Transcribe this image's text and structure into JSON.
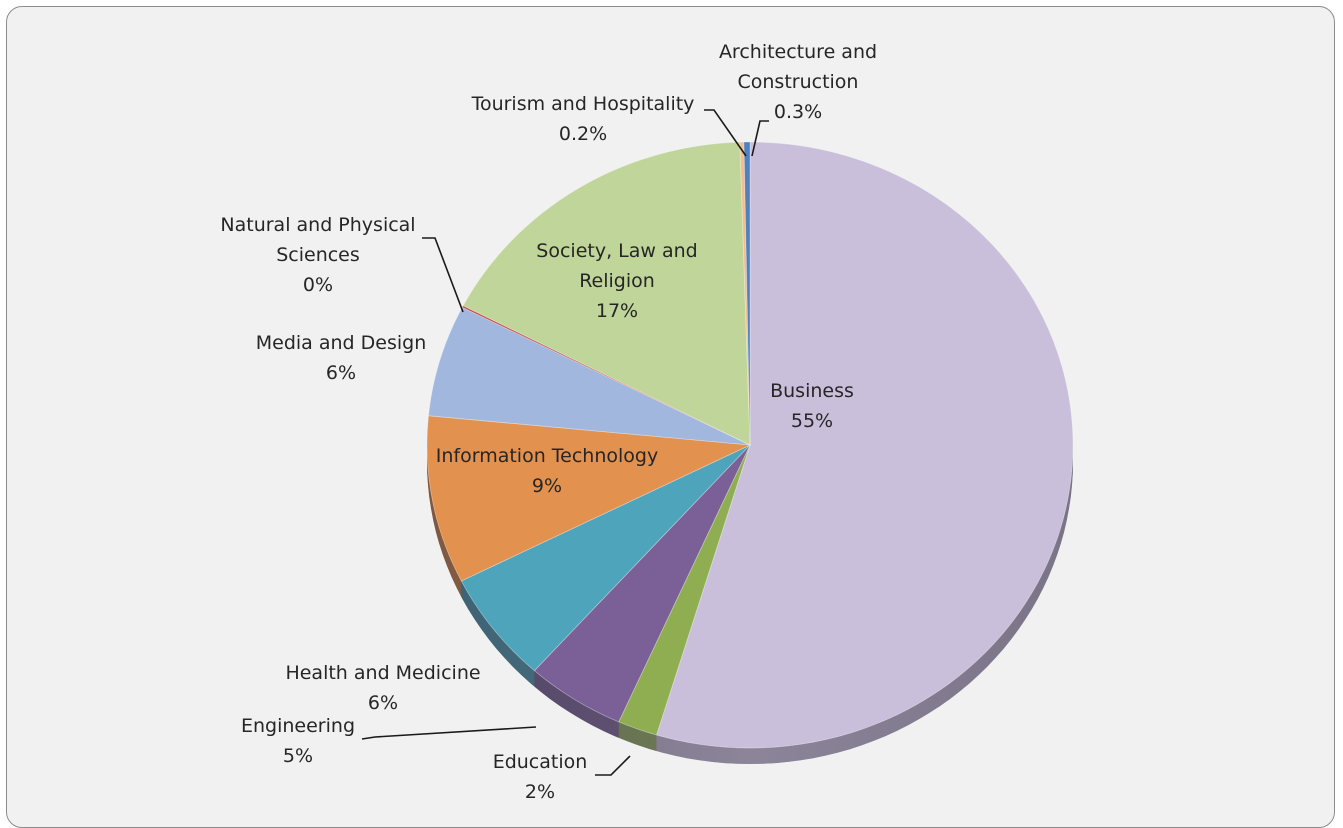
{
  "chart_data": {
    "type": "pie",
    "title": "",
    "slices": [
      {
        "key": "business",
        "label_lines": [
          "Business",
          "55%"
        ],
        "value": 55,
        "color": "#c9bfdb"
      },
      {
        "key": "education",
        "label_lines": [
          "Education",
          "2%"
        ],
        "value": 2,
        "color": "#8fae52"
      },
      {
        "key": "engineering",
        "label_lines": [
          "Engineering",
          "5%"
        ],
        "value": 5,
        "color": "#7b5f97"
      },
      {
        "key": "health-and-medicine",
        "label_lines": [
          "Health and Medicine",
          "6%"
        ],
        "value": 6,
        "color": "#4ea4bb"
      },
      {
        "key": "information-technology",
        "label_lines": [
          "Information Technology",
          "9%"
        ],
        "value": 9,
        "color": "#e3914e"
      },
      {
        "key": "media-and-design",
        "label_lines": [
          "Media and Design",
          "6%"
        ],
        "value": 6,
        "color": "#a2b7dd"
      },
      {
        "key": "natural-and-physical-sciences",
        "label_lines": [
          "Natural and Physical",
          "Sciences",
          "0%"
        ],
        "value": 0.1,
        "color": "#c0504d"
      },
      {
        "key": "society-law-and-religion",
        "label_lines": [
          "Society, Law and",
          "Religion",
          "17%"
        ],
        "value": 17,
        "color": "#c0d59a"
      },
      {
        "key": "tourism-and-hospitality",
        "label_lines": [
          "Tourism and Hospitality",
          "0.2%"
        ],
        "value": 0.2,
        "color": "#f2be8e"
      },
      {
        "key": "architecture-and-construction",
        "label_lines": [
          "Architecture and",
          "Construction",
          "0.3%"
        ],
        "value": 0.3,
        "color": "#4f81bd"
      }
    ]
  }
}
